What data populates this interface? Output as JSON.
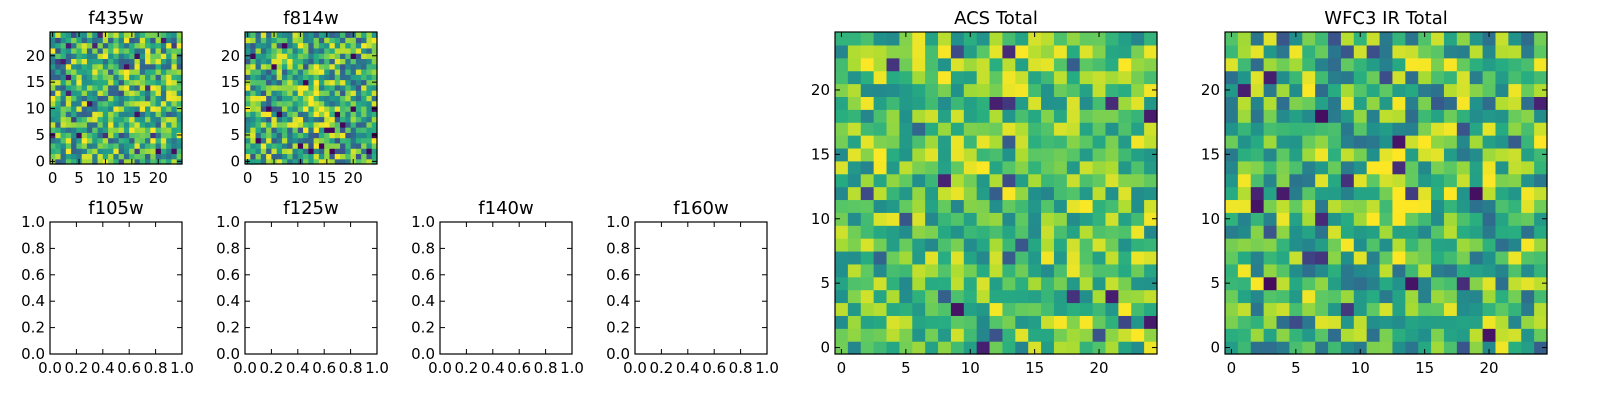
{
  "chart_data": [
    {
      "type": "heatmap",
      "title": "f435w",
      "grid_size": 25,
      "xlim": [
        -0.5,
        24.5
      ],
      "ylim": [
        -0.5,
        24.5
      ],
      "xticks": [
        0,
        5,
        10,
        15,
        20
      ],
      "yticks": [
        0,
        5,
        10,
        15,
        20
      ],
      "colormap": "viridis",
      "pixel_values": "approximately uniform random noise (0-1), not individually legible"
    },
    {
      "type": "heatmap",
      "title": "f814w",
      "grid_size": 25,
      "xlim": [
        -0.5,
        24.5
      ],
      "ylim": [
        -0.5,
        24.5
      ],
      "xticks": [
        0,
        5,
        10,
        15,
        20
      ],
      "yticks": [
        0,
        5,
        10,
        15,
        20
      ],
      "colormap": "viridis",
      "pixel_values": "random noise with a faint bright source near (12, 12)"
    },
    {
      "type": "empty",
      "title": "f105w",
      "xlim": [
        0,
        1
      ],
      "ylim": [
        0,
        1
      ],
      "xticks": [
        "0.0",
        "0.2",
        "0.4",
        "0.6",
        "0.8",
        "1.0"
      ],
      "yticks": [
        "0.0",
        "0.2",
        "0.4",
        "0.6",
        "0.8",
        "1.0"
      ]
    },
    {
      "type": "empty",
      "title": "f125w",
      "xlim": [
        0,
        1
      ],
      "ylim": [
        0,
        1
      ],
      "xticks": [
        "0.0",
        "0.2",
        "0.4",
        "0.6",
        "0.8",
        "1.0"
      ],
      "yticks": [
        "0.0",
        "0.2",
        "0.4",
        "0.6",
        "0.8",
        "1.0"
      ]
    },
    {
      "type": "empty",
      "title": "f140w",
      "xlim": [
        0,
        1
      ],
      "ylim": [
        0,
        1
      ],
      "xticks": [
        "0.0",
        "0.2",
        "0.4",
        "0.6",
        "0.8",
        "1.0"
      ],
      "yticks": [
        "0.0",
        "0.2",
        "0.4",
        "0.6",
        "0.8",
        "1.0"
      ]
    },
    {
      "type": "empty",
      "title": "f160w",
      "xlim": [
        0,
        1
      ],
      "ylim": [
        0,
        1
      ],
      "xticks": [
        "0.0",
        "0.2",
        "0.4",
        "0.6",
        "0.8",
        "1.0"
      ],
      "yticks": [
        "0.0",
        "0.2",
        "0.4",
        "0.6",
        "0.8",
        "1.0"
      ]
    },
    {
      "type": "heatmap",
      "title": "ACS Total",
      "grid_size": 25,
      "xlim": [
        -0.5,
        24.5
      ],
      "ylim": [
        -0.5,
        24.5
      ],
      "xticks": [
        0,
        5,
        10,
        15,
        20
      ],
      "yticks": [
        0,
        5,
        10,
        15,
        20
      ],
      "colormap": "viridis",
      "pixel_values": "random noise, mostly mid-to-high values"
    },
    {
      "type": "heatmap",
      "title": "WFC3 IR Total",
      "grid_size": 25,
      "xlim": [
        -0.5,
        24.5
      ],
      "ylim": [
        -0.5,
        24.5
      ],
      "xticks": [
        0,
        5,
        10,
        15,
        20
      ],
      "yticks": [
        0,
        5,
        10,
        15,
        20
      ],
      "colormap": "viridis",
      "pixel_values": "random noise with a bright region near (13, 11)"
    }
  ]
}
